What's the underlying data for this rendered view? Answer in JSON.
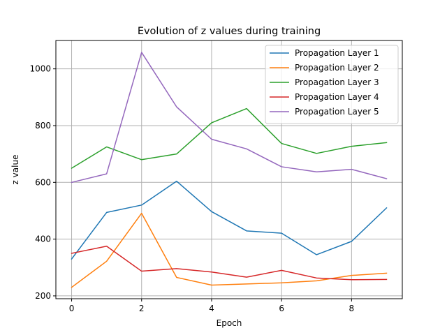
{
  "chart_data": {
    "type": "line",
    "title": "Evolution of z values during training",
    "xlabel": "Epoch",
    "ylabel": "z value",
    "x": [
      0,
      1,
      2,
      3,
      4,
      5,
      6,
      7,
      8,
      9
    ],
    "xlim": [
      -0.45,
      9.45
    ],
    "ylim": [
      190,
      1100
    ],
    "xticks": [
      0,
      2,
      4,
      6,
      8
    ],
    "yticks": [
      200,
      400,
      600,
      800,
      1000
    ],
    "grid": true,
    "legend_position": "top-right",
    "series": [
      {
        "name": "Propagation Layer 1",
        "color": "#1f77b4",
        "values": [
          330,
          494,
          520,
          604,
          497,
          429,
          421,
          345,
          392,
          510
        ]
      },
      {
        "name": "Propagation Layer 2",
        "color": "#ff7f0e",
        "values": [
          230,
          322,
          491,
          265,
          238,
          242,
          246,
          253,
          272,
          280
        ]
      },
      {
        "name": "Propagation Layer 3",
        "color": "#2ca02c",
        "values": [
          650,
          725,
          680,
          700,
          810,
          860,
          737,
          702,
          727,
          740
        ]
      },
      {
        "name": "Propagation Layer 4",
        "color": "#d62728",
        "values": [
          350,
          375,
          287,
          296,
          284,
          266,
          290,
          263,
          257,
          258
        ]
      },
      {
        "name": "Propagation Layer 5",
        "color": "#9467bd",
        "values": [
          600,
          630,
          1058,
          866,
          752,
          718,
          655,
          637,
          646,
          613
        ]
      }
    ]
  }
}
